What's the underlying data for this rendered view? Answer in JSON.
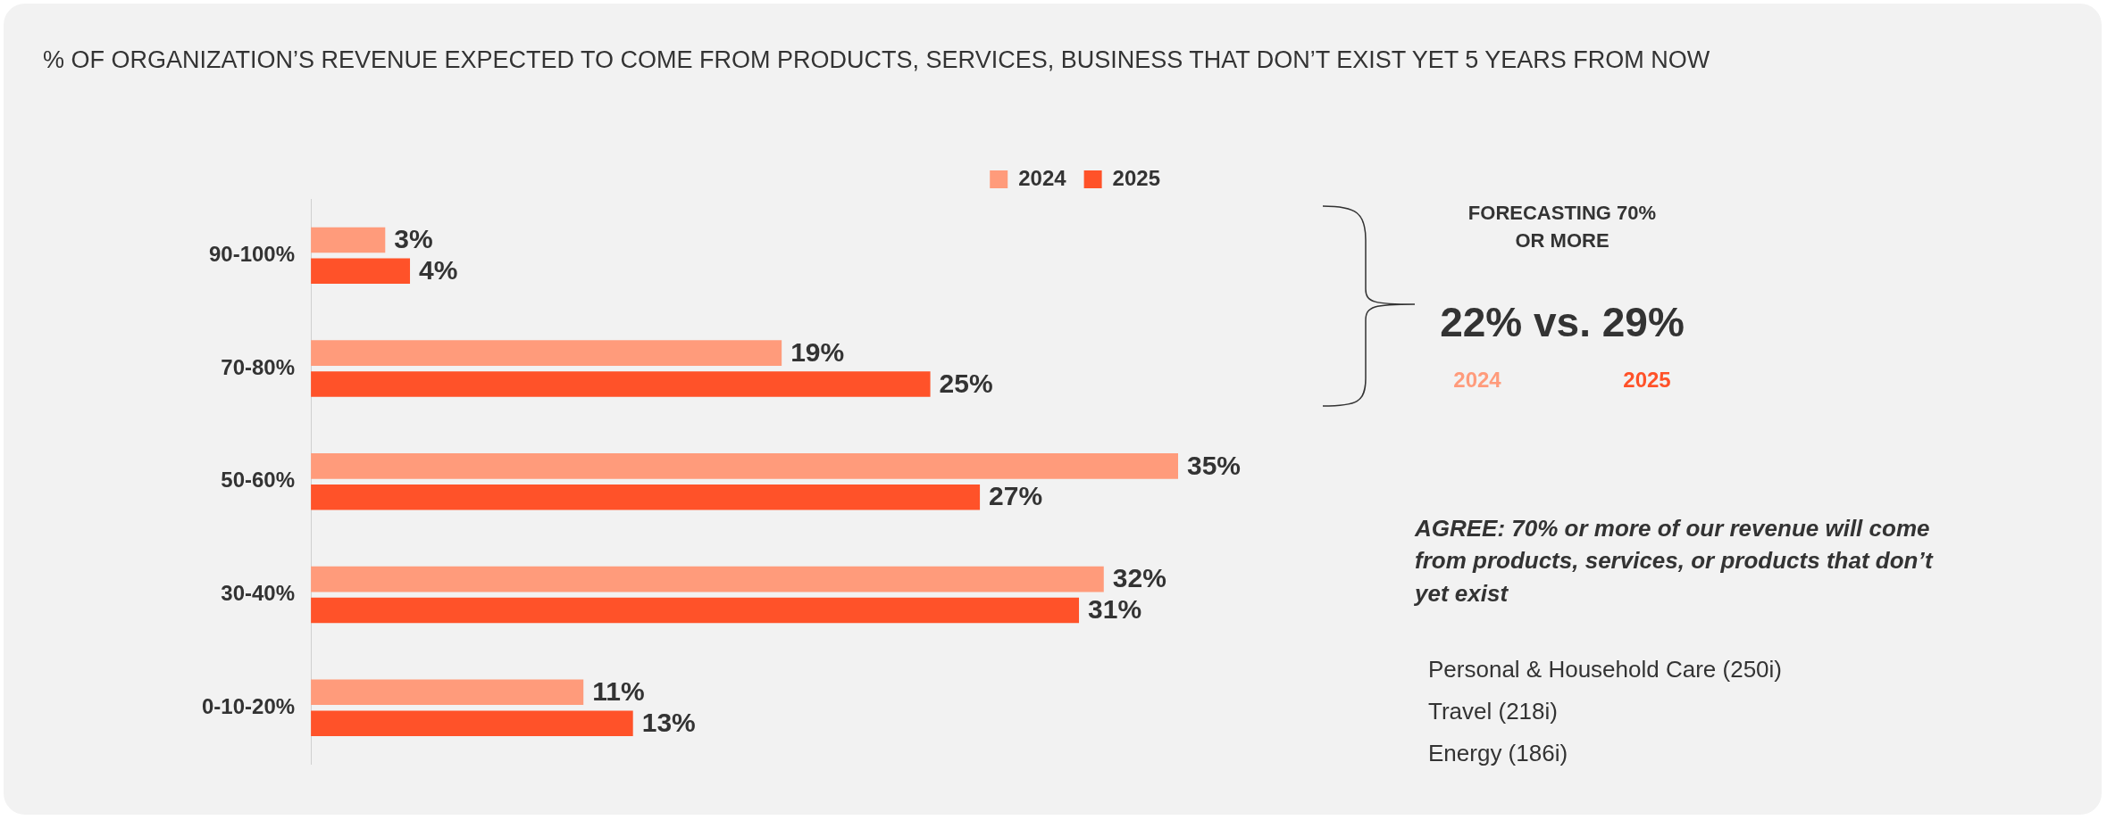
{
  "chart_data": {
    "type": "bar",
    "orientation": "horizontal",
    "title": "% OF ORGANIZATION’S REVENUE EXPECTED TO COME FROM PRODUCTS, SERVICES, BUSINESS THAT DON’T EXIST YET 5 YEARS FROM NOW",
    "categories": [
      "90-100%",
      "70-80%",
      "50-60%",
      "30-40%",
      "0-10-20%"
    ],
    "series": [
      {
        "name": "2024",
        "color": "#ff9b7b",
        "values": [
          3,
          19,
          35,
          32,
          11
        ],
        "value_labels": [
          "3%",
          "19%",
          "35%",
          "32%",
          "11%"
        ]
      },
      {
        "name": "2025",
        "color": "#ff5229",
        "values": [
          4,
          25,
          27,
          31,
          13
        ],
        "value_labels": [
          "4%",
          "25%",
          "27%",
          "31%",
          "13%"
        ]
      }
    ],
    "legend": "top",
    "grid": false,
    "tick_labels": "y",
    "annotations": [
      "FORECASTING 70%\nOR MORE",
      "22% vs. 29%",
      "2024",
      "2025",
      "AGREE: 70% or more of our revenue will come from products, services, or products that don’t yet exist",
      "Personal & Household Care (250i)",
      "Travel (218i)",
      "Energy (186i)"
    ]
  }
}
